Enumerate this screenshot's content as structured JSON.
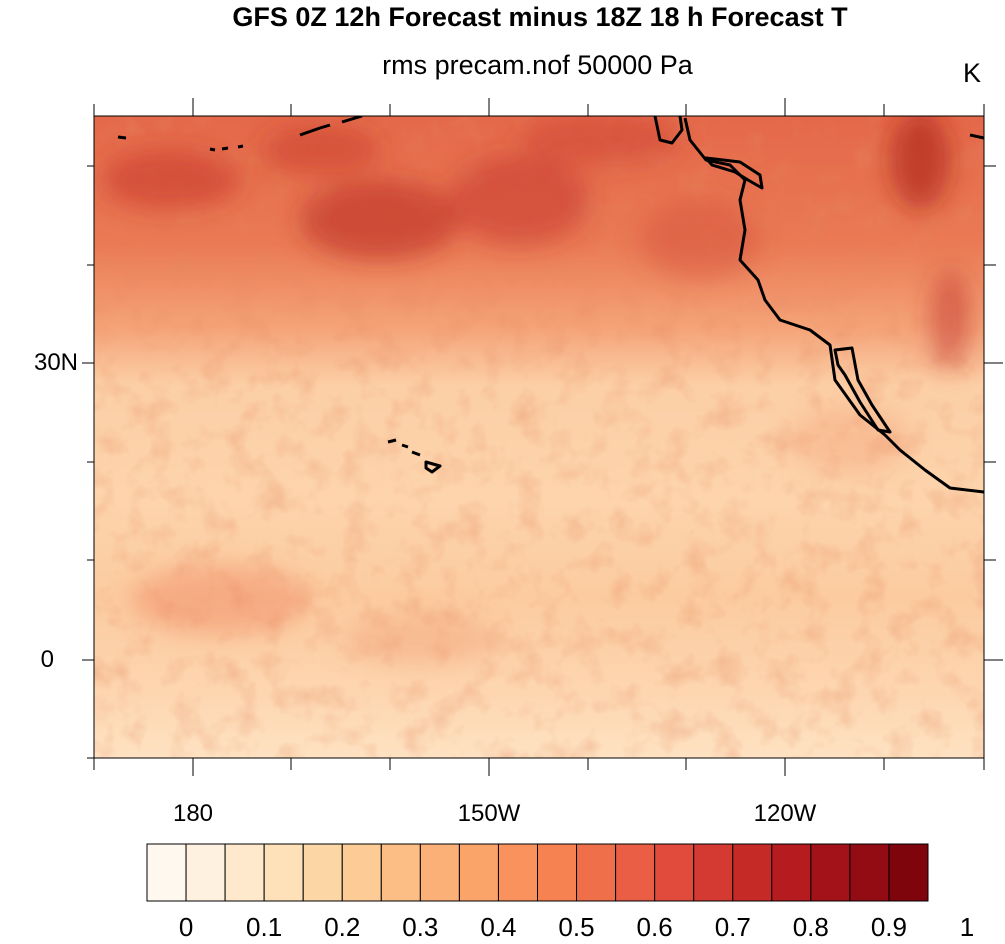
{
  "title": "GFS 0Z 12h Forecast minus 18Z 18 h Forecast T",
  "subtitle": "rms precam.nof 50000 Pa",
  "units": "K",
  "map": {
    "lat_range": [
      -10,
      55
    ],
    "lon_range": [
      170,
      260
    ],
    "lat_labels": [
      {
        "value": 30,
        "label": "30N"
      },
      {
        "value": 0,
        "label": "0"
      }
    ],
    "lon_labels": [
      {
        "value": 180,
        "label": "180"
      },
      {
        "value": 210,
        "label": "150W"
      },
      {
        "value": 240,
        "label": "120W"
      }
    ],
    "field": "rms T difference at 50000 Pa"
  },
  "colorbar": {
    "colors": [
      "#fff8ee",
      "#fff1df",
      "#ffe9cc",
      "#fee1b9",
      "#fdd6a6",
      "#fdcb95",
      "#fcbe85",
      "#fbb077",
      "#fba46a",
      "#f9925c",
      "#f68252",
      "#f06f4b",
      "#e95e44",
      "#e04b3b",
      "#d43a31",
      "#c62a27",
      "#b61c1f",
      "#a41219",
      "#930b13",
      "#7f050d"
    ],
    "labels": [
      "0",
      "0.1",
      "0.2",
      "0.3",
      "0.4",
      "0.5",
      "0.6",
      "0.7",
      "0.8",
      "0.9",
      "1"
    ]
  }
}
